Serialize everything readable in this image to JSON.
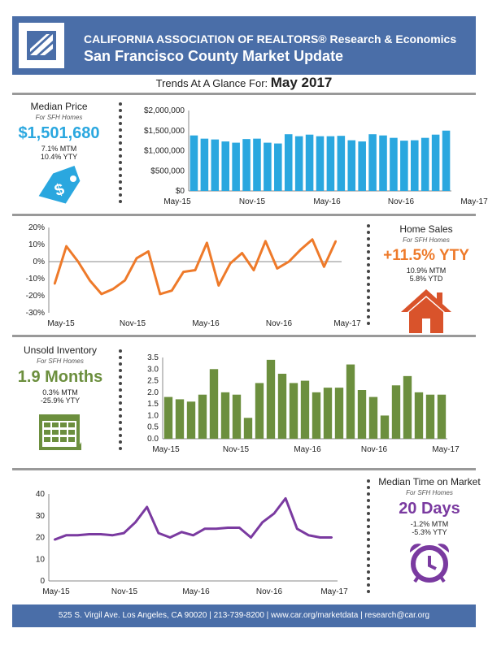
{
  "header": {
    "line1": "CALIFORNIA ASSOCIATION OF REALTORS® Research & Economics",
    "line2": "San Francisco County Market Update"
  },
  "trends": {
    "label": "Trends At A Glance For: ",
    "month": "May 2017"
  },
  "median_price": {
    "title": "Median Price",
    "sub": "For SFH Homes",
    "value": "$1,501,680",
    "mtm": "7.1% MTM",
    "yty": "10.4% YTY",
    "color": "#2aa7df",
    "icon": "price-tag-icon"
  },
  "home_sales": {
    "title": "Home Sales",
    "sub": "For SFH Homes",
    "value": "+11.5% YTY",
    "mtm": "10.9% MTM",
    "ytd": "5.8% YTD",
    "color": "#ee7a2a",
    "icon": "house-icon"
  },
  "inventory": {
    "title": "Unsold Inventory",
    "sub": "For SFH Homes",
    "value": "1.9 Months",
    "mtm": "0.3% MTM",
    "yty": "-25.9% YTY",
    "color": "#6c8f3e",
    "icon": "calendar-icon"
  },
  "time_on_market": {
    "title": "Median Time on Market",
    "sub": "For SFH Homes",
    "value": "20 Days",
    "mtm": "-1.2% MTM",
    "yty": "-5.3% YTY",
    "color": "#7a3aa0",
    "icon": "alarm-clock-icon"
  },
  "footer": "525 S. Virgil Ave. Los Angeles, CA 90020 | 213-739-8200 | www.car.org/marketdata | research@car.org",
  "chart_data": [
    {
      "type": "bar",
      "color": "#2aa7df",
      "xticks": [
        "May-15",
        "Nov-15",
        "May-16",
        "Nov-16",
        "May-17"
      ],
      "yticks": [
        "$0",
        "$500,000",
        "$1,000,000",
        "$1,500,000",
        "$2,000,000"
      ],
      "ylim": [
        0,
        2000000
      ],
      "values": [
        1380000,
        1300000,
        1280000,
        1230000,
        1200000,
        1290000,
        1300000,
        1200000,
        1180000,
        1410000,
        1360000,
        1400000,
        1360000,
        1360000,
        1370000,
        1260000,
        1230000,
        1410000,
        1380000,
        1320000,
        1250000,
        1260000,
        1320000,
        1400000,
        1500000
      ]
    },
    {
      "type": "line",
      "color": "#ee7a2a",
      "xticks": [
        "May-15",
        "Nov-15",
        "May-16",
        "Nov-16",
        "May-17"
      ],
      "yticks": [
        "-30%",
        "-20%",
        "-10%",
        "0%",
        "10%",
        "20%"
      ],
      "ylim": [
        -30,
        20
      ],
      "values": [
        -13,
        9,
        0,
        -11,
        -19,
        -16,
        -11,
        2,
        6,
        -19,
        -17,
        -6,
        -5,
        11,
        -14,
        -1,
        5,
        -5,
        12,
        -4,
        0,
        7,
        13,
        -3,
        12
      ]
    },
    {
      "type": "bar",
      "color": "#6c8f3e",
      "xticks": [
        "May-15",
        "Nov-15",
        "May-16",
        "Nov-16",
        "May-17"
      ],
      "yticks": [
        "0.0",
        "0.5",
        "1.0",
        "1.5",
        "2.0",
        "2.5",
        "3.0",
        "3.5"
      ],
      "ylim": [
        0,
        3.5
      ],
      "values": [
        1.8,
        1.7,
        1.6,
        1.9,
        3.0,
        2.0,
        1.9,
        0.9,
        2.4,
        3.4,
        2.8,
        2.4,
        2.5,
        2.0,
        2.2,
        2.2,
        3.2,
        2.1,
        1.8,
        1.0,
        2.3,
        2.7,
        2.0,
        1.9,
        1.9
      ]
    },
    {
      "type": "line",
      "color": "#7a3aa0",
      "xticks": [
        "May-15",
        "Nov-15",
        "May-16",
        "Nov-16",
        "May-17"
      ],
      "yticks": [
        "0",
        "10",
        "20",
        "30",
        "40"
      ],
      "ylim": [
        0,
        40
      ],
      "values": [
        19,
        21,
        21,
        21.5,
        21.5,
        21,
        22,
        27,
        34,
        22,
        20,
        22.5,
        21,
        24,
        24,
        24.5,
        24.5,
        20,
        27,
        31,
        38,
        24,
        21,
        20,
        20
      ]
    }
  ]
}
